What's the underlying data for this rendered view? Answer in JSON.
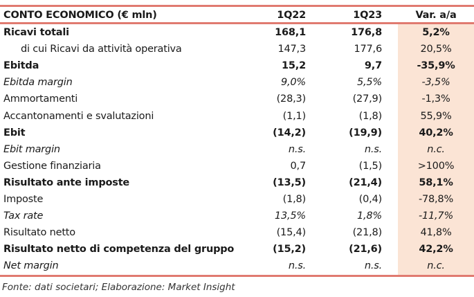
{
  "header": {
    "title": "CONTO ECONOMICO (€ mln)",
    "col1": "1Q22",
    "col2": "1Q23",
    "col3": "Var. a/a"
  },
  "rows": [
    {
      "label": "Ricavi totali",
      "v1": "168,1",
      "v2": "176,8",
      "var": "5,2%",
      "style": "bold"
    },
    {
      "label": "di cui Ricavi da attività operativa",
      "v1": "147,3",
      "v2": "177,6",
      "var": "20,5%",
      "style": "indent"
    },
    {
      "label": "Ebitda",
      "v1": "15,2",
      "v2": "9,7",
      "var": "-35,9%",
      "style": "bold"
    },
    {
      "label": "Ebitda margin",
      "v1": "9,0%",
      "v2": "5,5%",
      "var": "-3,5%",
      "style": "ital"
    },
    {
      "label": "Ammortamenti",
      "v1": "(28,3)",
      "v2": "(27,9)",
      "var": "-1,3%",
      "style": ""
    },
    {
      "label": "Accantonamenti e svalutazioni",
      "v1": "(1,1)",
      "v2": "(1,8)",
      "var": "55,9%",
      "style": ""
    },
    {
      "label": "Ebit",
      "v1": "(14,2)",
      "v2": "(19,9)",
      "var": "40,2%",
      "style": "bold"
    },
    {
      "label": "Ebit margin",
      "v1": "n.s.",
      "v2": "n.s.",
      "var": "n.c.",
      "style": "ital"
    },
    {
      "label": "Gestione finanziaria",
      "v1": "0,7",
      "v2": "(1,5)",
      "var": ">100%",
      "style": ""
    },
    {
      "label": "Risultato ante imposte",
      "v1": "(13,5)",
      "v2": "(21,4)",
      "var": "58,1%",
      "style": "bold"
    },
    {
      "label": "Imposte",
      "v1": "(1,8)",
      "v2": "(0,4)",
      "var": "-78,8%",
      "style": ""
    },
    {
      "label": "Tax rate",
      "v1": "13,5%",
      "v2": "1,8%",
      "var": "-11,7%",
      "style": "ital"
    },
    {
      "label": "Risultato netto",
      "v1": "(15,4)",
      "v2": "(21,8)",
      "var": "41,8%",
      "style": ""
    },
    {
      "label": "Risultato netto di competenza del gruppo",
      "v1": "(15,2)",
      "v2": "(21,6)",
      "var": "42,2%",
      "style": "bold"
    },
    {
      "label": "Net margin",
      "v1": "n.s.",
      "v2": "n.s.",
      "var": "n.c.",
      "style": "ital"
    }
  ],
  "footer": "Fonte: dati societari; Elaborazione: Market Insight",
  "colors": {
    "accent_line": "#e07a70",
    "highlight_column": "#fbe4d5"
  }
}
